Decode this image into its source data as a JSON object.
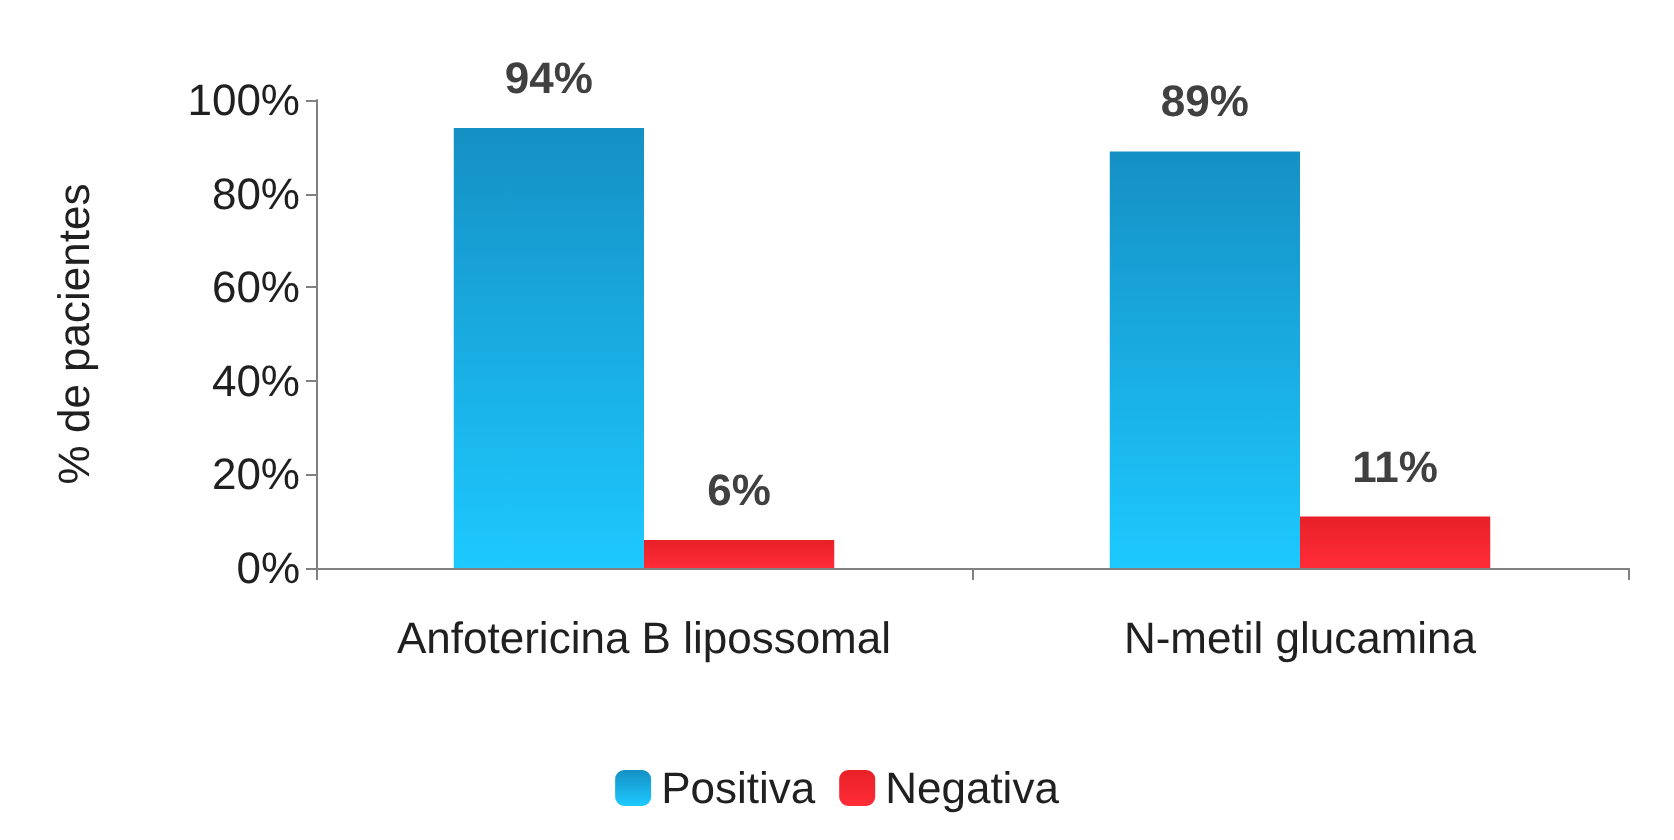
{
  "chart_data": {
    "type": "bar",
    "ylabel": "% de pacientes",
    "categories": [
      "Anfotericina B lipossomal",
      "N-metil glucamina"
    ],
    "series": [
      {
        "name": "Positiva",
        "color": "#1590c4",
        "values": [
          94,
          89
        ],
        "value_labels": [
          "94%",
          "89%"
        ]
      },
      {
        "name": "Negativa",
        "color": "#e82028",
        "values": [
          6,
          11
        ],
        "value_labels": [
          "6%",
          "11%"
        ]
      }
    ],
    "ylim": [
      0,
      100
    ],
    "yticks": [
      {
        "value": 0,
        "label": "0%"
      },
      {
        "value": 20,
        "label": "20%"
      },
      {
        "value": 40,
        "label": "40%"
      },
      {
        "value": 60,
        "label": "60%"
      },
      {
        "value": 80,
        "label": "80%"
      },
      {
        "value": 100,
        "label": "100%"
      }
    ],
    "grid": false,
    "legend": "bottom"
  }
}
